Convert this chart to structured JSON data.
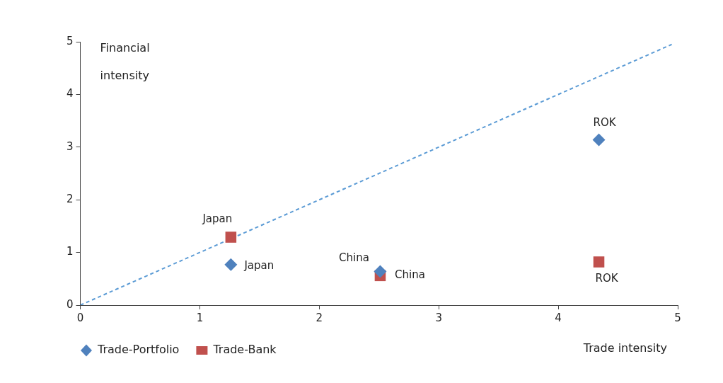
{
  "chart_data": {
    "type": "scatter",
    "xlabel": "Trade intensity",
    "ylabel": "Financial intensity",
    "xlim": [
      0,
      5
    ],
    "xticks": [
      0,
      1,
      2,
      3,
      4,
      5
    ],
    "ylim": [
      0,
      5
    ],
    "yticks": [
      0,
      1,
      2,
      3,
      4,
      5
    ],
    "grid": false,
    "legend": "bottom",
    "series": [
      {
        "name": "Trade-Portfolio",
        "color": "#4f81bd",
        "marker": "diamond",
        "x": [
          1.26,
          2.51,
          4.34
        ],
        "values": [
          0.77,
          0.64,
          3.14
        ]
      },
      {
        "name": "Trade-Bank",
        "color": "#c0504d",
        "marker": "square",
        "x": [
          1.26,
          2.51,
          4.34
        ],
        "values": [
          1.29,
          0.56,
          0.82
        ]
      },
      {
        "type": "line",
        "color": "#5b9bd5",
        "marker": "none",
        "line_style": "dashed",
        "x": [
          0,
          4.95
        ],
        "values": [
          0,
          4.95
        ]
      }
    ],
    "annotations": [
      {
        "text": "Japan",
        "x": 1.26,
        "y": 0.77
      },
      {
        "text": "China",
        "x": 2.51,
        "y": 0.64
      },
      {
        "text": "ROK",
        "x": 4.34,
        "y": 3.14
      },
      {
        "text": "Japan",
        "x": 1.26,
        "y": 1.29
      },
      {
        "text": "China",
        "x": 2.51,
        "y": 0.56
      },
      {
        "text": "ROK",
        "x": 4.34,
        "y": 0.82
      }
    ]
  }
}
